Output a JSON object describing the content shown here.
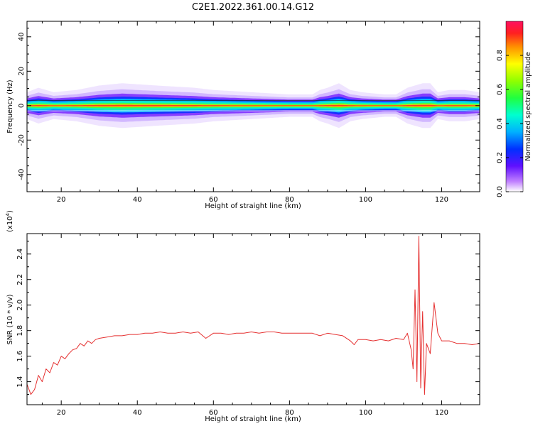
{
  "title": "C2E1.2022.361.00.14.G12",
  "chart_data": [
    {
      "type": "heatmap",
      "xlabel": "Height of straight line (km)",
      "ylabel": "Frequency (Hz)",
      "xlim": [
        11,
        130
      ],
      "ylim": [
        -50,
        49
      ],
      "x_ticks": [
        20,
        40,
        60,
        80,
        100,
        120
      ],
      "y_ticks": [
        -40,
        -20,
        0,
        20,
        40
      ],
      "x_tick_labels": [
        "20",
        "40",
        "60",
        "80",
        "100",
        "120"
      ],
      "y_tick_labels": [
        "-40",
        "-20",
        "0",
        "20",
        "40"
      ],
      "colorbar": {
        "label": "Normalized spectral amplitude",
        "range": [
          0,
          1
        ],
        "ticks": [
          0.0,
          0.2,
          0.4,
          0.6,
          0.8
        ],
        "tick_labels": [
          "0.0",
          "0.2",
          "0.4",
          "0.6",
          "0.8"
        ],
        "colormap": "hsv (violet to red)"
      },
      "band_center_hz": 0,
      "band_halfwidth_profile": {
        "x": [
          11,
          14,
          18,
          24,
          30,
          36,
          45,
          55,
          60,
          70,
          80,
          86,
          88,
          90,
          93,
          96,
          99,
          105,
          108,
          111,
          113,
          115,
          117,
          119,
          122,
          126,
          130
        ],
        "halfwidth_hz": [
          3,
          4,
          3,
          3.5,
          4.5,
          5,
          4.5,
          4,
          3.5,
          3,
          2.5,
          2.5,
          3.5,
          4,
          5,
          3.5,
          3,
          2.5,
          2.5,
          4,
          4.5,
          5,
          5,
          3,
          3.5,
          3.5,
          3
        ]
      },
      "grid": false
    },
    {
      "type": "line",
      "xlabel": "Height of straight line (km)",
      "ylabel": "SNR (10 * v/v)",
      "y_multiplier_label": "(x10",
      "y_multiplier_exp": "4",
      "y_multiplier_close": ")",
      "xlim": [
        11,
        130
      ],
      "ylim": [
        1.22,
        2.56
      ],
      "x_ticks": [
        20,
        40,
        60,
        80,
        100,
        120
      ],
      "y_ticks": [
        1.4,
        1.6,
        1.8,
        2.0,
        2.2,
        2.4
      ],
      "x_tick_labels": [
        "20",
        "40",
        "60",
        "80",
        "100",
        "120"
      ],
      "y_tick_labels": [
        "1.4",
        "1.6",
        "1.8",
        "2.0",
        "2.2",
        "2.4"
      ],
      "series": [
        {
          "color": "#e53030",
          "x": [
            11,
            12,
            13,
            14,
            15,
            16,
            17,
            18,
            19,
            20,
            21,
            22,
            23,
            24,
            25,
            26,
            27,
            28,
            29,
            30,
            32,
            34,
            36,
            38,
            40,
            42,
            44,
            46,
            48,
            50,
            52,
            54,
            56,
            58,
            60,
            62,
            64,
            66,
            68,
            70,
            72,
            74,
            76,
            78,
            80,
            82,
            84,
            86,
            88,
            90,
            92,
            94,
            96,
            97,
            98,
            100,
            102,
            104,
            106,
            108,
            110,
            111,
            112,
            112.5,
            113,
            113.5,
            114,
            114.5,
            115,
            115.5,
            116,
            117,
            118,
            119,
            120,
            122,
            124,
            126,
            128,
            130
          ],
          "y": [
            1.38,
            1.3,
            1.34,
            1.45,
            1.4,
            1.5,
            1.47,
            1.55,
            1.53,
            1.6,
            1.58,
            1.62,
            1.65,
            1.66,
            1.7,
            1.68,
            1.72,
            1.7,
            1.73,
            1.74,
            1.75,
            1.76,
            1.76,
            1.77,
            1.77,
            1.78,
            1.78,
            1.79,
            1.78,
            1.78,
            1.79,
            1.78,
            1.79,
            1.74,
            1.78,
            1.78,
            1.77,
            1.78,
            1.78,
            1.79,
            1.78,
            1.79,
            1.79,
            1.78,
            1.78,
            1.78,
            1.78,
            1.78,
            1.76,
            1.78,
            1.77,
            1.76,
            1.72,
            1.69,
            1.73,
            1.73,
            1.72,
            1.73,
            1.72,
            1.74,
            1.73,
            1.78,
            1.65,
            1.5,
            2.12,
            1.4,
            2.54,
            1.35,
            1.95,
            1.3,
            1.7,
            1.62,
            2.02,
            1.78,
            1.72,
            1.72,
            1.7,
            1.7,
            1.69,
            1.7
          ]
        }
      ],
      "grid": false
    }
  ]
}
